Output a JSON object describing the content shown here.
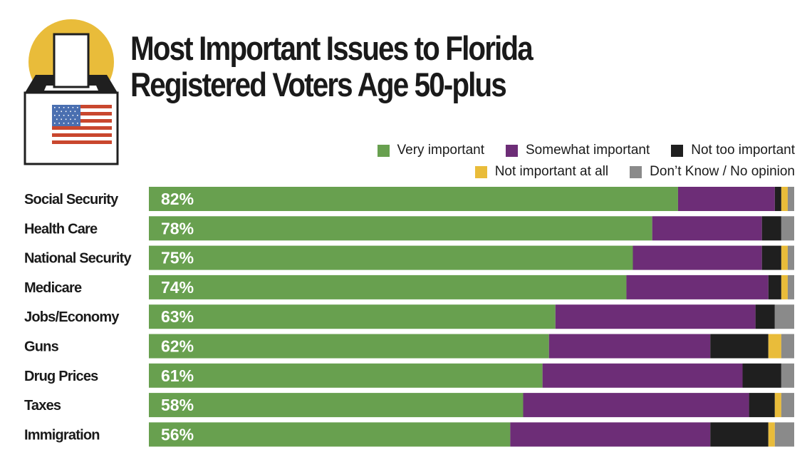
{
  "title_lines": [
    "Most Important Issues to Florida",
    "Registered Voters Age 50-plus"
  ],
  "icon": "ballot-box-with-flag-icon",
  "colors": {
    "very": "#68a04f",
    "somewhat": "#6d2d77",
    "not_too": "#1f1f1f",
    "not_at_all": "#e9bc3a",
    "dont_know": "#8a8a8a",
    "sun": "#e9bc3a"
  },
  "legend": [
    {
      "key": "very",
      "label": "Very important"
    },
    {
      "key": "somewhat",
      "label": "Somewhat important"
    },
    {
      "key": "not_too",
      "label": "Not too important"
    },
    {
      "key": "not_at_all",
      "label": "Not important at all"
    },
    {
      "key": "dont_know",
      "label": "Don’t Know / No opinion"
    }
  ],
  "chart_data": {
    "type": "bar",
    "orientation": "horizontal",
    "stacked": true,
    "title": "Most Important Issues to Florida Registered Voters Age 50-plus",
    "xlabel": "",
    "ylabel": "",
    "xlim": [
      0,
      100
    ],
    "grid": false,
    "legend_position": "top-right",
    "categories": [
      "Social Security",
      "Health Care",
      "National Security",
      "Medicare",
      "Jobs/Economy",
      "Guns",
      "Drug Prices",
      "Taxes",
      "Immigration"
    ],
    "series": [
      {
        "key": "very",
        "name": "Very important",
        "values": [
          82,
          78,
          75,
          74,
          63,
          62,
          61,
          58,
          56
        ],
        "data_labels": [
          "82%",
          "78%",
          "75%",
          "74%",
          "63%",
          "62%",
          "61%",
          "58%",
          "56%"
        ]
      },
      {
        "key": "somewhat",
        "name": "Somewhat important",
        "values": [
          15,
          17,
          20,
          22,
          31,
          25,
          31,
          35,
          31
        ]
      },
      {
        "key": "not_too",
        "name": "Not too important",
        "values": [
          1,
          3,
          3,
          2,
          3,
          9,
          6,
          4,
          9
        ]
      },
      {
        "key": "not_at_all",
        "name": "Not important at all",
        "values": [
          1,
          0,
          1,
          1,
          0,
          2,
          0,
          1,
          1
        ]
      },
      {
        "key": "dont_know",
        "name": "Don’t Know / No opinion",
        "values": [
          1,
          2,
          2,
          1,
          2,
          2,
          2,
          2,
          2
        ]
      }
    ]
  }
}
